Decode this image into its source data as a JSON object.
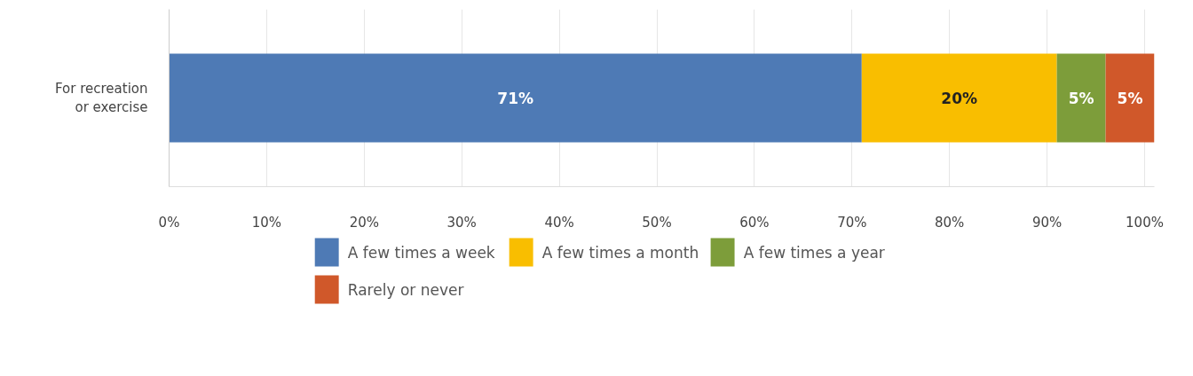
{
  "chart_data": {
    "type": "bar",
    "orientation": "horizontal",
    "stacked": true,
    "categories": [
      "For recreation or exercise"
    ],
    "series": [
      {
        "name": "A few times a week",
        "color": "#4e7ab5",
        "values": [
          71
        ]
      },
      {
        "name": "A few times a month",
        "color": "#f9be00",
        "values": [
          20
        ]
      },
      {
        "name": "A few times a year",
        "color": "#7d9d3a",
        "values": [
          5
        ]
      },
      {
        "name": "Rarely or never",
        "color": "#d0582a",
        "values": [
          5
        ]
      }
    ],
    "xlim": [
      0,
      101
    ],
    "xticks": [
      {
        "value": 0,
        "label": "0%"
      },
      {
        "value": 10,
        "label": "10%"
      },
      {
        "value": 20,
        "label": "20%"
      },
      {
        "value": 30,
        "label": "30%"
      },
      {
        "value": 40,
        "label": "40%"
      },
      {
        "value": 50,
        "label": "50%"
      },
      {
        "value": 60,
        "label": "60%"
      },
      {
        "value": 70,
        "label": "70%"
      },
      {
        "value": 80,
        "label": "80%"
      },
      {
        "value": 90,
        "label": "90%"
      },
      {
        "value": 100,
        "label": "100%"
      }
    ],
    "value_labels": [
      [
        "71%"
      ],
      [
        "20%"
      ],
      [
        "5%"
      ],
      [
        "5%"
      ]
    ],
    "grid": "x",
    "legend": "bottom"
  }
}
